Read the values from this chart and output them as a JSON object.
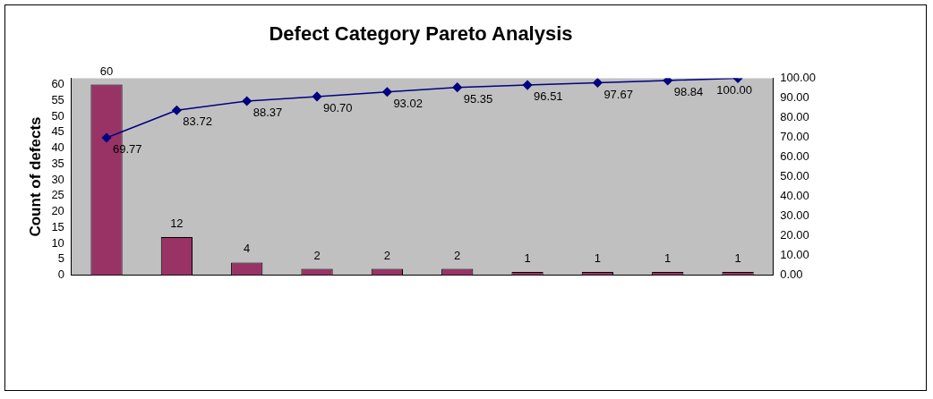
{
  "chart_data": {
    "type": "bar",
    "title": "Defect Category Pareto Analysis",
    "ylabel": "Count of defects",
    "categories": [
      null,
      null,
      null,
      null,
      null,
      null,
      null,
      null,
      null,
      null
    ],
    "series": [
      {
        "color": "#993366",
        "values": [
          60,
          12,
          4,
          2,
          2,
          2,
          1,
          1,
          1,
          1
        ],
        "value_labels": [
          "60",
          "12",
          "4",
          "2",
          "2",
          "2",
          "1",
          "1",
          "1",
          "1"
        ]
      },
      {
        "type": "line",
        "axis": "y2",
        "color": "#000080",
        "values": [
          69.77,
          83.72,
          88.37,
          90.7,
          93.02,
          95.35,
          96.51,
          97.67,
          98.84,
          100.0
        ],
        "value_labels": [
          "69.77",
          "83.72",
          "88.37",
          "90.70",
          "93.02",
          "95.35",
          "96.51",
          "97.67",
          "98.84",
          "100.00"
        ]
      }
    ],
    "ylim": [
      0,
      62
    ],
    "yticks": [
      0,
      5,
      10,
      15,
      20,
      25,
      30,
      35,
      40,
      45,
      50,
      55,
      60
    ],
    "y2lim": [
      0,
      100
    ],
    "y2ticks": [
      {
        "value": 0,
        "label": "0.00"
      },
      {
        "value": 10,
        "label": "10.00"
      },
      {
        "value": 20,
        "label": "20.00"
      },
      {
        "value": 30,
        "label": "30.00"
      },
      {
        "value": 40,
        "label": "40.00"
      },
      {
        "value": 50,
        "label": "50.00"
      },
      {
        "value": 60,
        "label": "60.00"
      },
      {
        "value": 70,
        "label": "70.00"
      },
      {
        "value": 80,
        "label": "80.00"
      },
      {
        "value": 90,
        "label": "90.00"
      },
      {
        "value": 100,
        "label": "100.00"
      }
    ],
    "grid": false,
    "legend": false,
    "marker": "diamond",
    "line_style": "solid"
  }
}
